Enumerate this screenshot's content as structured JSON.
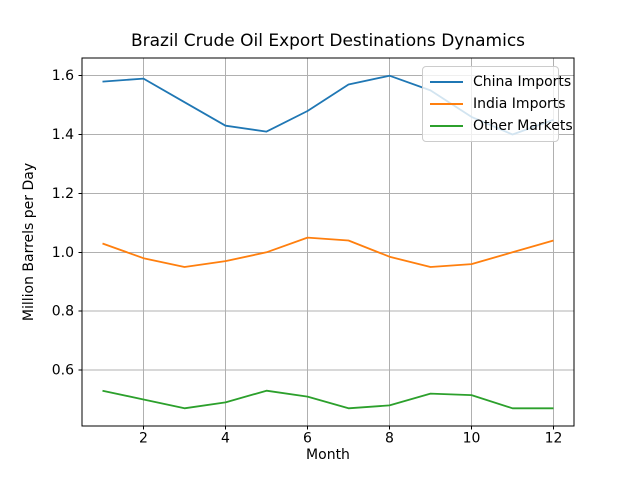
{
  "chart_data": {
    "type": "line",
    "title": "Brazil Crude Oil Export Destinations Dynamics",
    "xlabel": "Month",
    "ylabel": "Million Barrels per Day",
    "x": [
      1,
      2,
      3,
      4,
      5,
      6,
      7,
      8,
      9,
      10,
      11,
      12
    ],
    "series": [
      {
        "name": "China Imports",
        "color": "#1f77b4",
        "values": [
          1.58,
          1.59,
          1.51,
          1.43,
          1.41,
          1.48,
          1.57,
          1.6,
          1.55,
          1.46,
          1.4,
          1.45
        ]
      },
      {
        "name": "India Imports",
        "color": "#ff7f0e",
        "values": [
          1.03,
          0.98,
          0.95,
          0.97,
          1.0,
          1.05,
          1.04,
          0.985,
          0.95,
          0.96,
          1.0,
          1.04
        ]
      },
      {
        "name": "Other Markets",
        "color": "#2ca02c",
        "values": [
          0.53,
          0.5,
          0.47,
          0.49,
          0.53,
          0.51,
          0.47,
          0.48,
          0.52,
          0.515,
          0.47,
          0.47
        ]
      }
    ],
    "xlim": [
      0.5,
      12.5
    ],
    "ylim": [
      0.41,
      1.66
    ],
    "xticks": [
      2,
      4,
      6,
      8,
      10,
      12
    ],
    "yticks": [
      0.6,
      0.8,
      1.0,
      1.2,
      1.4,
      1.6
    ],
    "grid": true,
    "legend_position": "upper right",
    "grid_color": "#b0b0b0",
    "spine_color": "#000000",
    "background": "#ffffff"
  }
}
